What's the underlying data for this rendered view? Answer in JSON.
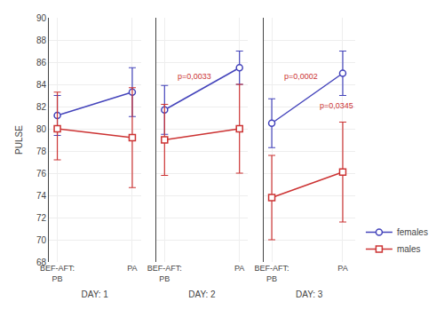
{
  "chart_data": [
    {
      "type": "line",
      "xlabel": "DAY: 1",
      "ylabel": "PULSE",
      "categories": [
        "BEF-AFT:\nPB",
        "PA"
      ],
      "series": [
        {
          "name": "females",
          "color": "#4444bb",
          "marker": "circle",
          "values": [
            81.2,
            83.3
          ],
          "err_low": [
            1.8,
            2.2
          ],
          "err_high": [
            1.8,
            2.2
          ]
        },
        {
          "name": "males",
          "color": "#cc3333",
          "marker": "square",
          "values": [
            80.0,
            79.2
          ],
          "err_low": [
            2.8,
            4.5
          ],
          "err_high": [
            3.3,
            4.5
          ]
        }
      ],
      "ylim": [
        68,
        90
      ],
      "yticks": [
        68,
        70,
        72,
        74,
        76,
        78,
        80,
        82,
        84,
        86,
        88,
        90
      ],
      "grid": true
    },
    {
      "type": "line",
      "xlabel": "DAY: 2",
      "categories": [
        "BEF-AFT:\nPB",
        "PA"
      ],
      "series": [
        {
          "name": "females",
          "color": "#4444bb",
          "marker": "circle",
          "values": [
            81.7,
            85.5
          ],
          "err_low": [
            2.2,
            1.5
          ],
          "err_high": [
            2.2,
            1.5
          ]
        },
        {
          "name": "males",
          "color": "#cc3333",
          "marker": "square",
          "values": [
            79.0,
            80.0
          ],
          "err_low": [
            3.2,
            4.0
          ],
          "err_high": [
            3.2,
            4.0
          ]
        }
      ],
      "ylim": [
        68,
        90
      ],
      "yticks": [
        68,
        70,
        72,
        74,
        76,
        78,
        80,
        82,
        84,
        86,
        88,
        90
      ],
      "grid": true,
      "tick_labels": "x",
      "annotations": [
        {
          "text": "p=0,0033",
          "x": 0.15,
          "y": 84.2,
          "color": "#cc3333"
        }
      ]
    },
    {
      "type": "line",
      "xlabel": "DAY: 3",
      "categories": [
        "BEF-AFT:\nPB",
        "PA"
      ],
      "series": [
        {
          "name": "females",
          "color": "#4444bb",
          "marker": "circle",
          "values": [
            80.5,
            85.0
          ],
          "err_low": [
            2.2,
            2.0
          ],
          "err_high": [
            2.2,
            2.0
          ]
        },
        {
          "name": "males",
          "color": "#cc3333",
          "marker": "square",
          "values": [
            73.8,
            76.1
          ],
          "err_low": [
            3.8,
            4.5
          ],
          "err_high": [
            3.8,
            4.5
          ]
        }
      ],
      "ylim": [
        68,
        90
      ],
      "yticks": [
        68,
        70,
        72,
        74,
        76,
        78,
        80,
        82,
        84,
        86,
        88,
        90
      ],
      "grid": true,
      "tick_labels": "x",
      "annotations": [
        {
          "text": "p=0,0002",
          "x": 0.15,
          "y": 84.2,
          "color": "#cc3333"
        },
        {
          "text": "p=0,0345",
          "x": 0.65,
          "y": 81.5,
          "color": "#cc3333"
        }
      ],
      "legend": "lower right"
    }
  ]
}
